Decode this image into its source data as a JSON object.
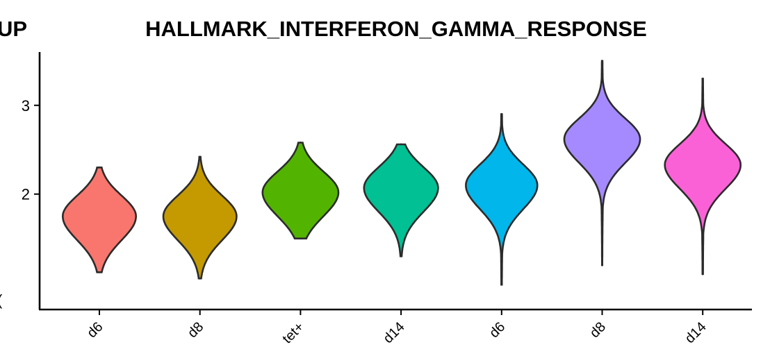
{
  "chart_data": {
    "type": "violin",
    "title": "HALLMARK_INTERFERON_GAMMA_RESPONSE",
    "partial_left_title": "UP",
    "partial_left_label": "(",
    "xlabel": "",
    "ylabel": "",
    "yticks": [
      2,
      3
    ],
    "ylim": [
      0.7,
      3.6
    ],
    "categories": [
      "d6",
      "d8",
      "tet+",
      "d14",
      "d6",
      "d8",
      "d14"
    ],
    "series": [
      {
        "min": 1.12,
        "mode": 1.75,
        "max": 2.3,
        "spread": 0.85,
        "color": "#F8766D"
      },
      {
        "min": 1.05,
        "mode": 1.75,
        "max": 2.42,
        "spread": 0.85,
        "color": "#C49A00"
      },
      {
        "min": 1.5,
        "mode": 2.02,
        "max": 2.58,
        "spread": 0.88,
        "color": "#53B400"
      },
      {
        "min": 1.3,
        "mode": 2.07,
        "max": 2.56,
        "spread": 0.86,
        "color": "#00C094"
      },
      {
        "min": 0.98,
        "mode": 2.1,
        "max": 2.9,
        "spread": 0.83,
        "color": "#00B6EB"
      },
      {
        "min": 1.2,
        "mode": 2.62,
        "max": 3.5,
        "spread": 0.88,
        "color": "#A58AFF"
      },
      {
        "min": 1.1,
        "mode": 2.33,
        "max": 3.3,
        "spread": 0.88,
        "color": "#FB61D7"
      }
    ]
  }
}
